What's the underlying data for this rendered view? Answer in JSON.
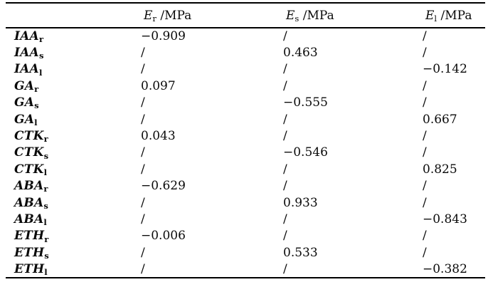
{
  "page": {
    "background": "#ffffff",
    "text_color": "#0a0a0a",
    "rule_color": "#000000"
  },
  "table": {
    "headers": [
      {
        "base": "E",
        "sub": "r",
        "unit": " /MPa"
      },
      {
        "base": "E",
        "sub": "s",
        "unit": " /MPa"
      },
      {
        "base": "E",
        "sub": "l",
        "unit": " /MPa"
      }
    ],
    "rows": [
      {
        "label": {
          "base": "IAA",
          "sub": "r"
        },
        "values": [
          "−0.909",
          "/",
          "/"
        ]
      },
      {
        "label": {
          "base": "IAA",
          "sub": "s"
        },
        "values": [
          "/",
          "0.463",
          "/"
        ]
      },
      {
        "label": {
          "base": "IAA",
          "sub": "l"
        },
        "values": [
          "/",
          "/",
          "−0.142"
        ]
      },
      {
        "label": {
          "base": "GA",
          "sub": "r"
        },
        "values": [
          "0.097",
          "/",
          "/"
        ]
      },
      {
        "label": {
          "base": "GA",
          "sub": "s"
        },
        "values": [
          "/",
          "−0.555",
          "/"
        ]
      },
      {
        "label": {
          "base": "GA",
          "sub": "l"
        },
        "values": [
          "/",
          "/",
          "0.667"
        ]
      },
      {
        "label": {
          "base": "CTK",
          "sub": "r"
        },
        "values": [
          "0.043",
          "/",
          "/"
        ]
      },
      {
        "label": {
          "base": "CTK",
          "sub": "s"
        },
        "values": [
          "/",
          "−0.546",
          "/"
        ]
      },
      {
        "label": {
          "base": "CTK",
          "sub": "l"
        },
        "values": [
          "/",
          "/",
          "0.825"
        ]
      },
      {
        "label": {
          "base": "ABA",
          "sub": "r"
        },
        "values": [
          "−0.629",
          "/",
          "/"
        ]
      },
      {
        "label": {
          "base": "ABA",
          "sub": "s"
        },
        "values": [
          "/",
          "0.933",
          "/"
        ]
      },
      {
        "label": {
          "base": "ABA",
          "sub": "l"
        },
        "values": [
          "/",
          "/",
          "−0.843"
        ]
      },
      {
        "label": {
          "base": "ETH",
          "sub": "r"
        },
        "values": [
          "−0.006",
          "/",
          "/"
        ]
      },
      {
        "label": {
          "base": "ETH",
          "sub": "s"
        },
        "values": [
          "/",
          "0.533",
          "/"
        ]
      },
      {
        "label": {
          "base": "ETH",
          "sub": "l"
        },
        "values": [
          "/",
          "/",
          "−0.382"
        ]
      }
    ]
  }
}
